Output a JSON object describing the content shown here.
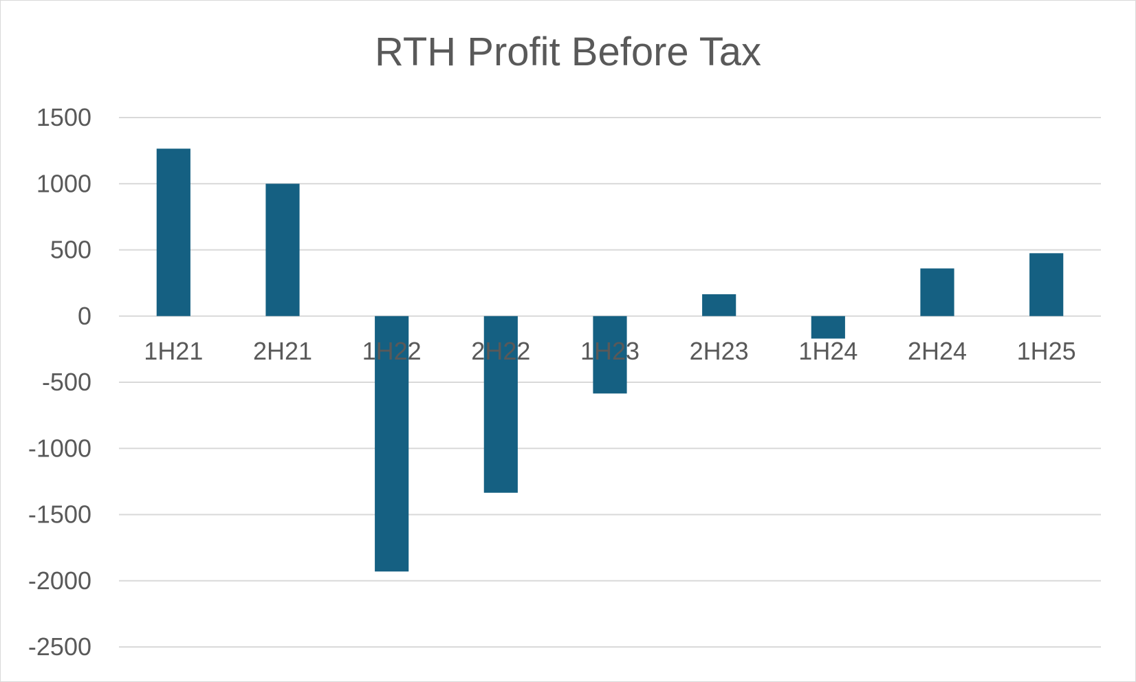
{
  "chart_data": {
    "type": "bar",
    "title": "RTH Profit Before Tax",
    "xlabel": "",
    "ylabel": "",
    "categories": [
      "1H21",
      "2H21",
      "1H22",
      "2H22",
      "1H23",
      "2H23",
      "1H24",
      "2H24",
      "1H25"
    ],
    "values": [
      1265,
      1000,
      -1930,
      -1335,
      -585,
      165,
      -170,
      360,
      475
    ],
    "ylim": [
      -2500,
      1500
    ],
    "yticks": [
      1500,
      1000,
      500,
      0,
      -500,
      -1000,
      -1500,
      -2000,
      -2500
    ],
    "ytick_labels": [
      "1500",
      "1000",
      "500",
      "0",
      "-500",
      "-1000",
      "-1500",
      "-2000",
      "-2500"
    ],
    "grid": true,
    "legend": "none",
    "colors": {
      "bar": "#156082",
      "grid": "#d9d9d9",
      "text": "#595959"
    }
  }
}
